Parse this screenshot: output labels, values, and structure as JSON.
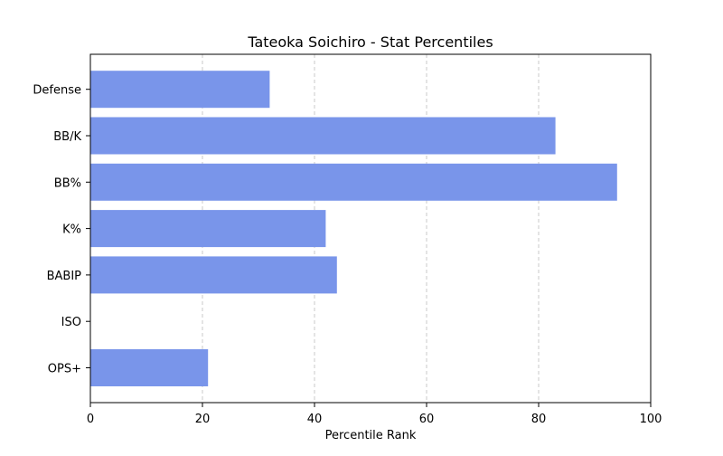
{
  "chart_data": {
    "type": "bar",
    "orientation": "horizontal",
    "title": "Tateoka Soichiro - Stat Percentiles",
    "xlabel": "Percentile Rank",
    "ylabel": "",
    "xlim": [
      0,
      100
    ],
    "xticks": [
      0,
      20,
      40,
      60,
      80,
      100
    ],
    "grid": "x-dashed",
    "categories": [
      "OPS+",
      "ISO",
      "BABIP",
      "K%",
      "BB%",
      "BB/K",
      "Defense"
    ],
    "values": [
      21,
      0,
      44,
      42,
      94,
      83,
      32
    ],
    "bar_color": "#7995ea"
  }
}
